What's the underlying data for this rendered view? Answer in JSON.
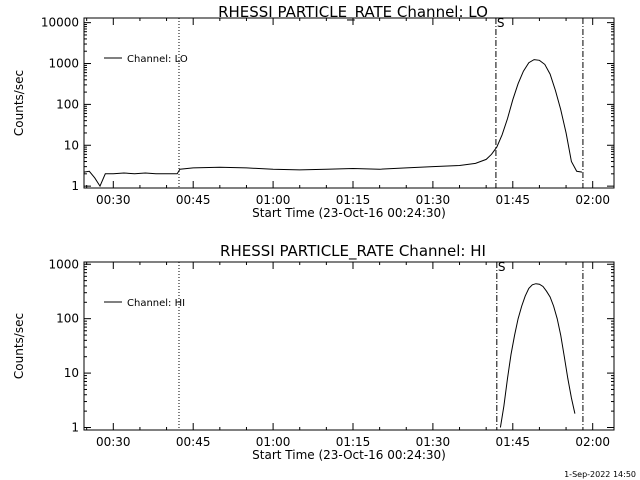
{
  "chart_data": [
    {
      "type": "line",
      "title": "RHESSI PARTICLE_RATE Channel: LO",
      "xlabel": "Start Time (23-Oct-16 00:24:30)",
      "ylabel": "Counts/sec",
      "y_scale": "log",
      "ylim": [
        0.9,
        13000
      ],
      "xlim": [
        "00:24:30",
        "02:04:00"
      ],
      "x_ticks": [
        "00:30",
        "00:45",
        "01:00",
        "01:15",
        "01:30",
        "01:45",
        "02:00"
      ],
      "y_ticks": [
        "1",
        "10",
        "100",
        "1000",
        "10000"
      ],
      "legend": "top-left",
      "vlines": [
        {
          "x": "00:42:20",
          "style": "dotted"
        },
        {
          "x": "01:41:50",
          "style": "dash-dot",
          "label": "S"
        },
        {
          "x": "01:58:10",
          "style": "dash-dot"
        }
      ],
      "series": [
        {
          "name": "Channel: LO",
          "x": [
            "00:24:30",
            "00:25:30",
            "00:26:30",
            "00:27:30",
            "00:28:30",
            "00:30:00",
            "00:32:00",
            "00:34:00",
            "00:36:00",
            "00:38:00",
            "00:40:00",
            "00:42:00",
            "00:42:30",
            "00:45:00",
            "00:50:00",
            "00:55:00",
            "01:00:00",
            "01:05:00",
            "01:10:00",
            "01:15:00",
            "01:20:00",
            "01:25:00",
            "01:30:00",
            "01:35:00",
            "01:38:00",
            "01:40:00",
            "01:41:00",
            "01:42:00",
            "01:43:00",
            "01:44:00",
            "01:45:00",
            "01:46:00",
            "01:47:00",
            "01:48:00",
            "01:49:00",
            "01:50:00",
            "01:51:00",
            "01:52:00",
            "01:53:00",
            "01:54:00",
            "01:55:00",
            "01:56:00",
            "01:57:00",
            "01:58:00"
          ],
          "values": [
            2.2,
            2.3,
            1.6,
            1.0,
            2.0,
            2.0,
            2.1,
            2.0,
            2.1,
            2.0,
            2.0,
            2.0,
            2.6,
            2.8,
            2.9,
            2.8,
            2.6,
            2.5,
            2.6,
            2.7,
            2.6,
            2.8,
            3.0,
            3.2,
            3.6,
            4.5,
            6.0,
            9.0,
            18,
            45,
            130,
            320,
            650,
            1050,
            1250,
            1200,
            950,
            550,
            220,
            75,
            20,
            4,
            2.3,
            2.2
          ]
        }
      ]
    },
    {
      "type": "line",
      "title": "RHESSI PARTICLE_RATE Channel: HI",
      "xlabel": "Start Time (23-Oct-16 00:24:30)",
      "ylabel": "Counts/sec",
      "y_scale": "log",
      "ylim": [
        0.9,
        1100
      ],
      "xlim": [
        "00:24:30",
        "02:04:00"
      ],
      "x_ticks": [
        "00:30",
        "00:45",
        "01:00",
        "01:15",
        "01:30",
        "01:45",
        "02:00"
      ],
      "y_ticks": [
        "1",
        "10",
        "100",
        "1000"
      ],
      "legend": "top-left",
      "vlines": [
        {
          "x": "00:42:20",
          "style": "dotted"
        },
        {
          "x": "01:42:00",
          "style": "dash-dot",
          "label": "S"
        },
        {
          "x": "01:58:10",
          "style": "dash-dot"
        }
      ],
      "series": [
        {
          "name": "Channel: HI",
          "x": [
            "01:42:40",
            "01:43:20",
            "01:44:00",
            "01:44:40",
            "01:45:20",
            "01:46:00",
            "01:46:40",
            "01:47:20",
            "01:48:00",
            "01:48:40",
            "01:49:20",
            "01:50:00",
            "01:50:40",
            "01:51:20",
            "01:52:00",
            "01:52:40",
            "01:53:20",
            "01:54:00",
            "01:54:40",
            "01:55:20",
            "01:56:00",
            "01:56:40"
          ],
          "values": [
            1.0,
            2.5,
            8,
            22,
            50,
            100,
            170,
            260,
            360,
            420,
            440,
            430,
            390,
            320,
            250,
            170,
            100,
            50,
            20,
            8,
            3.5,
            1.8
          ]
        }
      ]
    }
  ],
  "footer": "1-Sep-2022 14:50"
}
